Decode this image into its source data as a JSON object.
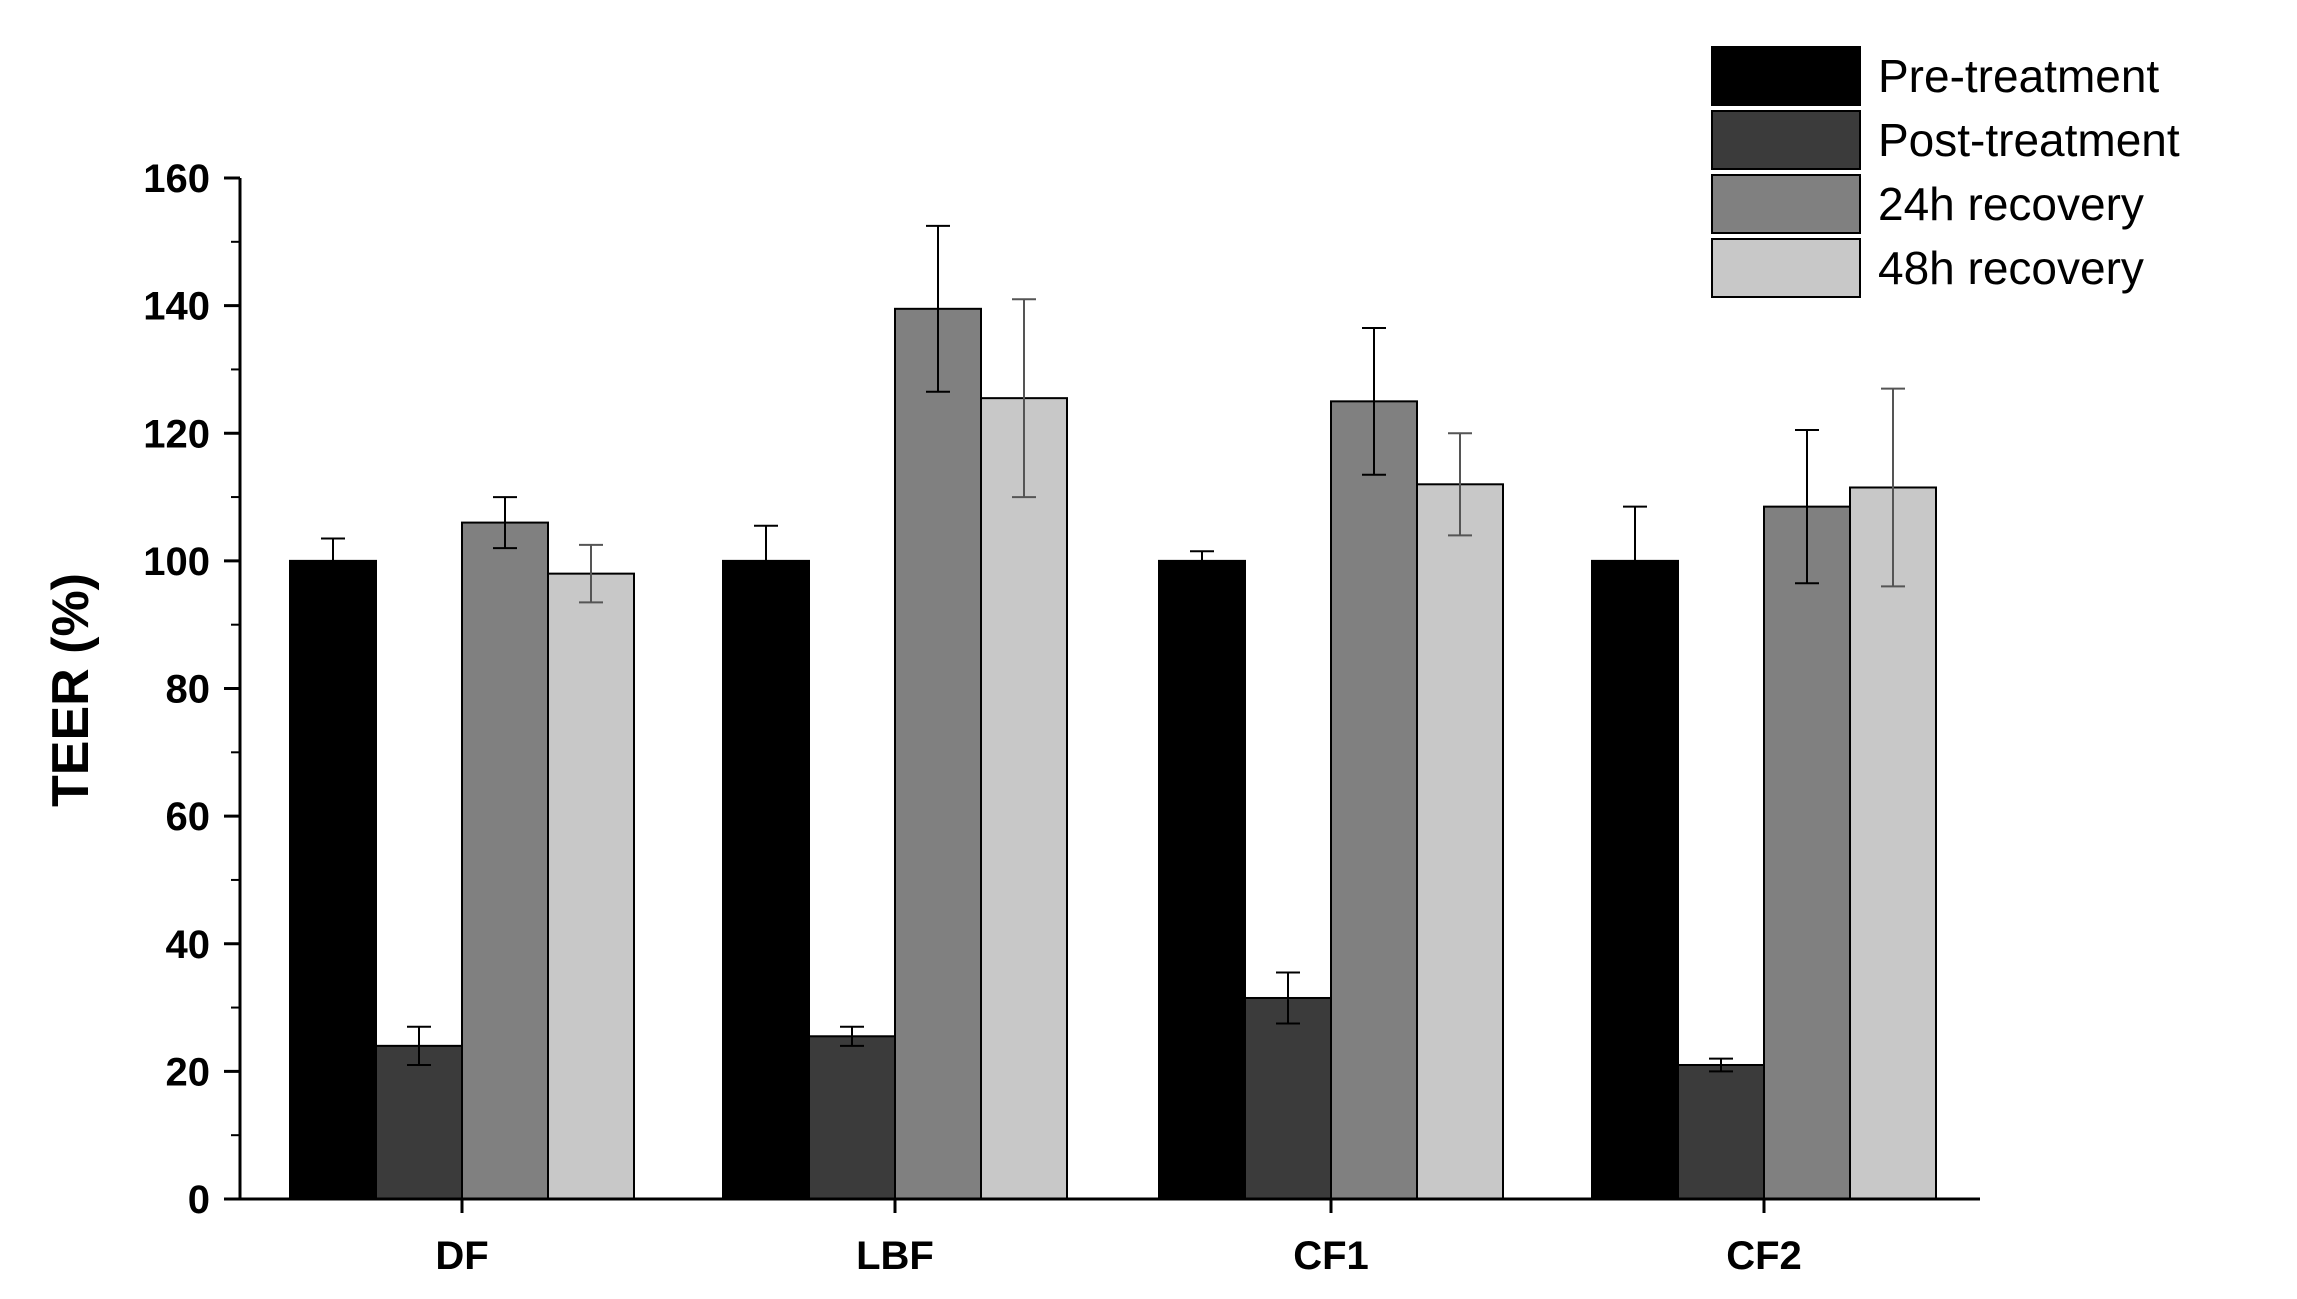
{
  "chart_data": {
    "type": "bar",
    "title": "",
    "xlabel": "",
    "ylabel": "TEER (%)",
    "ylim": [
      0,
      160
    ],
    "yticks": [
      0,
      20,
      40,
      60,
      80,
      100,
      120,
      140,
      160
    ],
    "categories": [
      "DF",
      "LBF",
      "CF1",
      "CF2"
    ],
    "series": [
      {
        "name": "Pre-treatment",
        "color": "#000000",
        "values": [
          100,
          100,
          100,
          100
        ],
        "errors": [
          3.5,
          5.5,
          1.5,
          8.5
        ]
      },
      {
        "name": "Post-treatment",
        "color": "#3b3b3b",
        "values": [
          24,
          25.5,
          31.5,
          21
        ],
        "errors": [
          3,
          1.5,
          4,
          1
        ]
      },
      {
        "name": "24h recovery",
        "color": "#808080",
        "values": [
          106,
          139.5,
          125,
          108.5
        ],
        "errors": [
          4,
          13,
          11.5,
          12
        ]
      },
      {
        "name": "48h recovery",
        "color": "#c8c8c8",
        "values": [
          98,
          125.5,
          112,
          111.5
        ],
        "errors": [
          4.5,
          15.5,
          8,
          15.5
        ]
      }
    ],
    "legend": {
      "position": "top-right"
    },
    "grid": false
  }
}
